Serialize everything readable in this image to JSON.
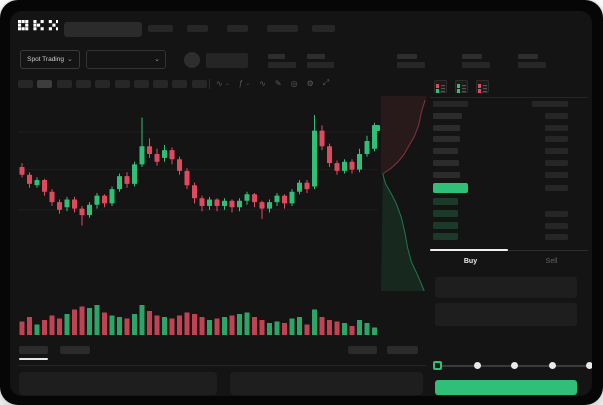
{
  "app": {
    "logo": "OKX"
  },
  "colors": {
    "green": "#2fbf77",
    "red": "#e04a5f",
    "bid_dim_green": "#1b3a29",
    "surface": "#141414",
    "skeleton": "#2c2c2c",
    "active_tab_indicator": "#f0f0f0"
  },
  "icons": {
    "chevron_down": "⌄"
  },
  "topnav": {
    "search_placeholder": "",
    "items": [
      {
        "w": 25
      },
      {
        "w": 21
      },
      {
        "w": 21
      },
      {
        "w": 31
      },
      {
        "w": 23
      }
    ]
  },
  "market_bar": {
    "market_selector_label": "Spot Trading",
    "stats": [
      {
        "label_w": 17,
        "value_w": 28
      },
      {
        "label_w": 18,
        "value_w": 27
      },
      {
        "label_w": 20,
        "value_w": 28
      },
      {
        "label_w": 20,
        "value_w": 28
      },
      {
        "label_w": 20,
        "value_w": 28
      }
    ]
  },
  "chart_toolbar": {
    "timeframes": {
      "count": 10,
      "active_index": 1
    },
    "tools": [
      {
        "name": "indicators-dropdown-icon",
        "glyph": "∿",
        "chevron": true
      },
      {
        "name": "candle-style-dropdown-icon",
        "glyph": "ƒ",
        "chevron": true
      },
      {
        "name": "line-type-icon",
        "glyph": "∿",
        "chevron": false
      },
      {
        "name": "draw-icon",
        "glyph": "✎",
        "chevron": false
      },
      {
        "name": "camera-icon",
        "glyph": "◎",
        "chevron": false
      },
      {
        "name": "settings-icon",
        "glyph": "⚙",
        "chevron": false
      },
      {
        "name": "fullscreen-icon",
        "glyph": "⤢",
        "chevron": false
      }
    ]
  },
  "order_book": {
    "view_toggles": [
      "book-both-icon",
      "book-bids-icon",
      "book-asks-icon"
    ],
    "header": {
      "left_w": 35,
      "right_w": 36
    },
    "asks": [
      {
        "pw": 29,
        "aw": 23
      },
      {
        "pw": 27,
        "aw": 23
      },
      {
        "pw": 27,
        "aw": 23
      },
      {
        "pw": 25,
        "aw": 23
      },
      {
        "pw": 26,
        "aw": 23
      },
      {
        "pw": 27,
        "aw": 23
      }
    ],
    "last_price_row": {
      "highlighted": true,
      "aw": 23
    },
    "bids": [
      {
        "pw": 25,
        "aw": 0
      },
      {
        "pw": 25,
        "aw": 23
      },
      {
        "pw": 25,
        "aw": 23
      },
      {
        "pw": 25,
        "aw": 23
      }
    ]
  },
  "trade_form": {
    "tabs": [
      {
        "label": "Buy",
        "active": true
      },
      {
        "label": "Sell",
        "active": false
      }
    ],
    "inputs": [
      {
        "name": "price-input"
      },
      {
        "name": "amount-input"
      }
    ],
    "slider": {
      "points": 5,
      "active_index": 0
    },
    "submit": {
      "label": ""
    }
  },
  "bottom_panel": {
    "tabs_left": [
      {
        "w": 29,
        "active": true
      },
      {
        "w": 30,
        "active": false
      }
    ],
    "tabs_right": [
      {
        "w": 29
      },
      {
        "w": 31
      }
    ],
    "panels": 2
  },
  "chart_data": {
    "type": "candlestick",
    "title": "",
    "x_count": 48,
    "ylim": [
      0,
      100
    ],
    "grid_price_lines": [
      87,
      58,
      27
    ],
    "candles": [
      [
        60,
        54,
        63,
        52
      ],
      [
        54,
        47,
        56,
        44
      ],
      [
        46,
        50,
        52,
        44
      ],
      [
        50,
        41,
        51,
        38
      ],
      [
        41,
        33,
        43,
        30
      ],
      [
        33,
        27,
        35,
        24
      ],
      [
        29,
        35,
        37,
        26
      ],
      [
        35,
        28,
        37,
        25
      ],
      [
        28,
        23,
        30,
        15
      ],
      [
        23,
        31,
        33,
        21
      ],
      [
        31,
        38,
        40,
        28
      ],
      [
        38,
        32,
        39,
        29
      ],
      [
        32,
        43,
        45,
        30
      ],
      [
        43,
        53,
        55,
        41
      ],
      [
        53,
        47,
        56,
        44
      ],
      [
        47,
        62,
        64,
        45
      ],
      [
        62,
        76,
        98,
        60
      ],
      [
        76,
        70,
        82,
        67
      ],
      [
        70,
        64,
        74,
        61
      ],
      [
        67,
        73,
        77,
        64
      ],
      [
        73,
        66,
        75,
        62
      ],
      [
        66,
        57,
        68,
        54
      ],
      [
        57,
        46,
        59,
        43
      ],
      [
        46,
        36,
        48,
        32
      ],
      [
        36,
        30,
        38,
        26
      ],
      [
        30,
        35,
        37,
        27
      ],
      [
        35,
        30,
        36,
        26
      ],
      [
        30,
        34,
        36,
        27
      ],
      [
        34,
        29,
        35,
        25
      ],
      [
        29,
        34,
        36,
        26
      ],
      [
        34,
        39,
        41,
        31
      ],
      [
        39,
        33,
        40,
        29
      ],
      [
        33,
        28,
        34,
        20
      ],
      [
        28,
        33,
        35,
        25
      ],
      [
        33,
        38,
        40,
        30
      ],
      [
        38,
        32,
        39,
        28
      ],
      [
        32,
        41,
        43,
        30
      ],
      [
        41,
        48,
        50,
        39
      ],
      [
        48,
        43,
        50,
        40
      ],
      [
        45,
        88,
        100,
        43
      ],
      [
        88,
        76,
        92,
        73
      ],
      [
        76,
        63,
        78,
        60
      ],
      [
        63,
        57,
        65,
        54
      ],
      [
        57,
        64,
        66,
        55
      ],
      [
        64,
        58,
        66,
        55
      ],
      [
        58,
        70,
        74,
        56
      ],
      [
        70,
        80,
        84,
        68
      ],
      [
        74,
        90,
        94,
        72
      ]
    ],
    "volume": [
      45,
      60,
      35,
      50,
      65,
      55,
      70,
      85,
      95,
      90,
      100,
      75,
      65,
      60,
      55,
      70,
      100,
      80,
      65,
      60,
      55,
      65,
      75,
      70,
      60,
      50,
      55,
      60,
      65,
      70,
      75,
      60,
      50,
      40,
      45,
      40,
      55,
      60,
      35,
      85,
      60,
      50,
      45,
      40,
      30,
      50,
      40,
      25
    ],
    "depth": {
      "asks": [
        [
          0.96,
          0.02
        ],
        [
          0.88,
          0.08
        ],
        [
          0.82,
          0.15
        ],
        [
          0.72,
          0.21
        ],
        [
          0.62,
          0.25
        ],
        [
          0.5,
          0.3
        ],
        [
          0.36,
          0.34
        ],
        [
          0.22,
          0.37
        ],
        [
          0.1,
          0.39
        ],
        [
          0.04,
          0.4
        ]
      ],
      "bids": [
        [
          0.04,
          0.4
        ],
        [
          0.1,
          0.45
        ],
        [
          0.22,
          0.5
        ],
        [
          0.33,
          0.55
        ],
        [
          0.44,
          0.62
        ],
        [
          0.52,
          0.7
        ],
        [
          0.58,
          0.78
        ],
        [
          0.66,
          0.85
        ],
        [
          0.8,
          0.92
        ],
        [
          0.94,
          1.0
        ]
      ]
    }
  }
}
